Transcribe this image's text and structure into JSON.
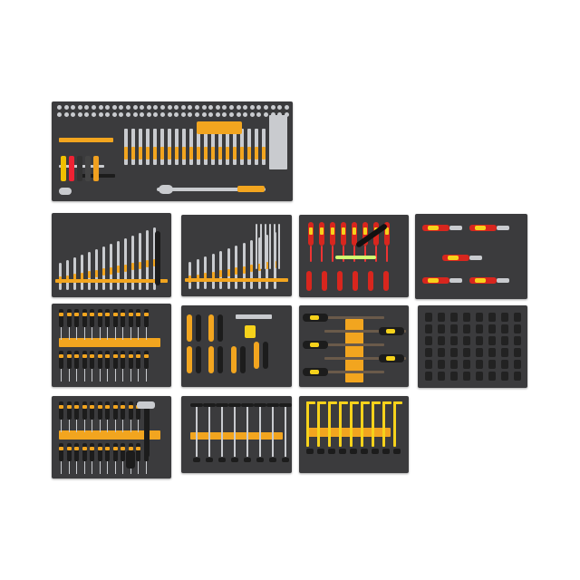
{
  "colors": {
    "tray": "#3b3b3d",
    "accent": "#f2a51f",
    "chrome": "#c9cbcf",
    "handle": "#1c1c1c",
    "red": "#d8261e",
    "yellow": "#f6d21b"
  },
  "trays": [
    {
      "kind": "socket-set"
    },
    {
      "kind": "combination-wrenches"
    },
    {
      "kind": "double-ring-wrenches"
    },
    {
      "kind": "insulated-screwdrivers"
    },
    {
      "kind": "insulated-pliers"
    },
    {
      "kind": "screwdrivers"
    },
    {
      "kind": "pliers-and-caliper"
    },
    {
      "kind": "files"
    },
    {
      "kind": "impact-sockets"
    },
    {
      "kind": "punches-chisels-hammer"
    },
    {
      "kind": "t-handle-keys"
    },
    {
      "kind": "hex-keys"
    }
  ]
}
